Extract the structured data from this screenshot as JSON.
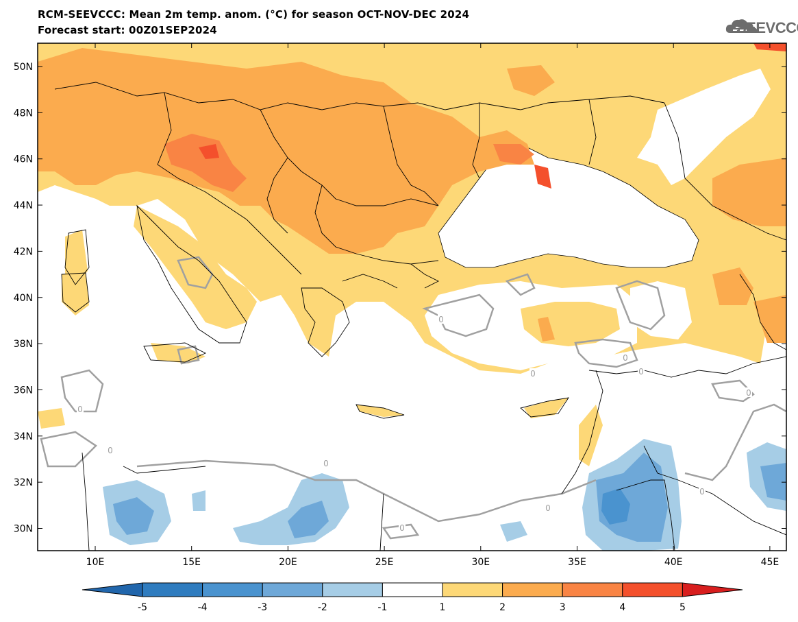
{
  "header": {
    "title_line1": "RCM-SEEVCCC: Mean 2m temp. anom. (°C) for season OCT-NOV-DEC 2024",
    "title_line2": "Forecast start: 00Z01SEP2024"
  },
  "logo": {
    "text": "SEEVCCC",
    "icon": "cloud-icon"
  },
  "map": {
    "lat_labels": [
      "50N",
      "48N",
      "46N",
      "44N",
      "42N",
      "40N",
      "38N",
      "36N",
      "34N",
      "32N",
      "30N"
    ],
    "lon_labels": [
      "10E",
      "15E",
      "20E",
      "25E",
      "30E",
      "35E",
      "40E",
      "45E"
    ],
    "contour_label": "0"
  },
  "colorbar": {
    "labels": [
      "-5",
      "-4",
      "-3",
      "-2",
      "-1",
      "1",
      "2",
      "3",
      "4",
      "5"
    ],
    "colors": [
      "#2166ac",
      "#2f7cbf",
      "#4a93cf",
      "#6ea8d8",
      "#a6cde6",
      "#ffffff",
      "#fdd877",
      "#fbab4e",
      "#f98444",
      "#f4502c",
      "#d81e1e"
    ]
  },
  "colors": {
    "land_light": "#fdd877",
    "land_mid": "#fbab4e",
    "land_dark": "#f98444",
    "land_red": "#f4502c",
    "cool_light": "#a6cde6",
    "cool_mid": "#6ea8d8",
    "cool_dark": "#4a93cf",
    "contour": "#a0a0a0"
  }
}
